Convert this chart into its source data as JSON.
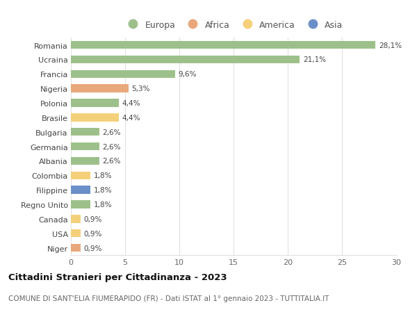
{
  "countries": [
    "Romania",
    "Ucraina",
    "Francia",
    "Nigeria",
    "Polonia",
    "Brasile",
    "Bulgaria",
    "Germania",
    "Albania",
    "Colombia",
    "Filippine",
    "Regno Unito",
    "Canada",
    "USA",
    "Niger"
  ],
  "values": [
    28.1,
    21.1,
    9.6,
    5.3,
    4.4,
    4.4,
    2.6,
    2.6,
    2.6,
    1.8,
    1.8,
    1.8,
    0.9,
    0.9,
    0.9
  ],
  "labels": [
    "28,1%",
    "21,1%",
    "9,6%",
    "5,3%",
    "4,4%",
    "4,4%",
    "2,6%",
    "2,6%",
    "2,6%",
    "1,8%",
    "1,8%",
    "1,8%",
    "0,9%",
    "0,9%",
    "0,9%"
  ],
  "continents": [
    "Europa",
    "Europa",
    "Europa",
    "Africa",
    "Europa",
    "America",
    "Europa",
    "Europa",
    "Europa",
    "America",
    "Asia",
    "Europa",
    "America",
    "America",
    "Africa"
  ],
  "colors": {
    "Europa": "#9DC08B",
    "Africa": "#E8A87C",
    "America": "#F5D07A",
    "Asia": "#6B8FC9"
  },
  "title": "Cittadini Stranieri per Cittadinanza - 2023",
  "subtitle": "COMUNE DI SANT'ELIA FIUMERAPIDO (FR) - Dati ISTAT al 1° gennaio 2023 - TUTTITALIA.IT",
  "xlim": [
    0,
    30
  ],
  "xticks": [
    0,
    5,
    10,
    15,
    20,
    25,
    30
  ],
  "background_color": "#ffffff",
  "grid_color": "#e0e0e0",
  "bar_height": 0.55,
  "label_fontsize": 7.5,
  "ytick_fontsize": 8.0,
  "xtick_fontsize": 8.0,
  "legend_fontsize": 9.0,
  "title_fontsize": 9.5,
  "subtitle_fontsize": 7.5
}
